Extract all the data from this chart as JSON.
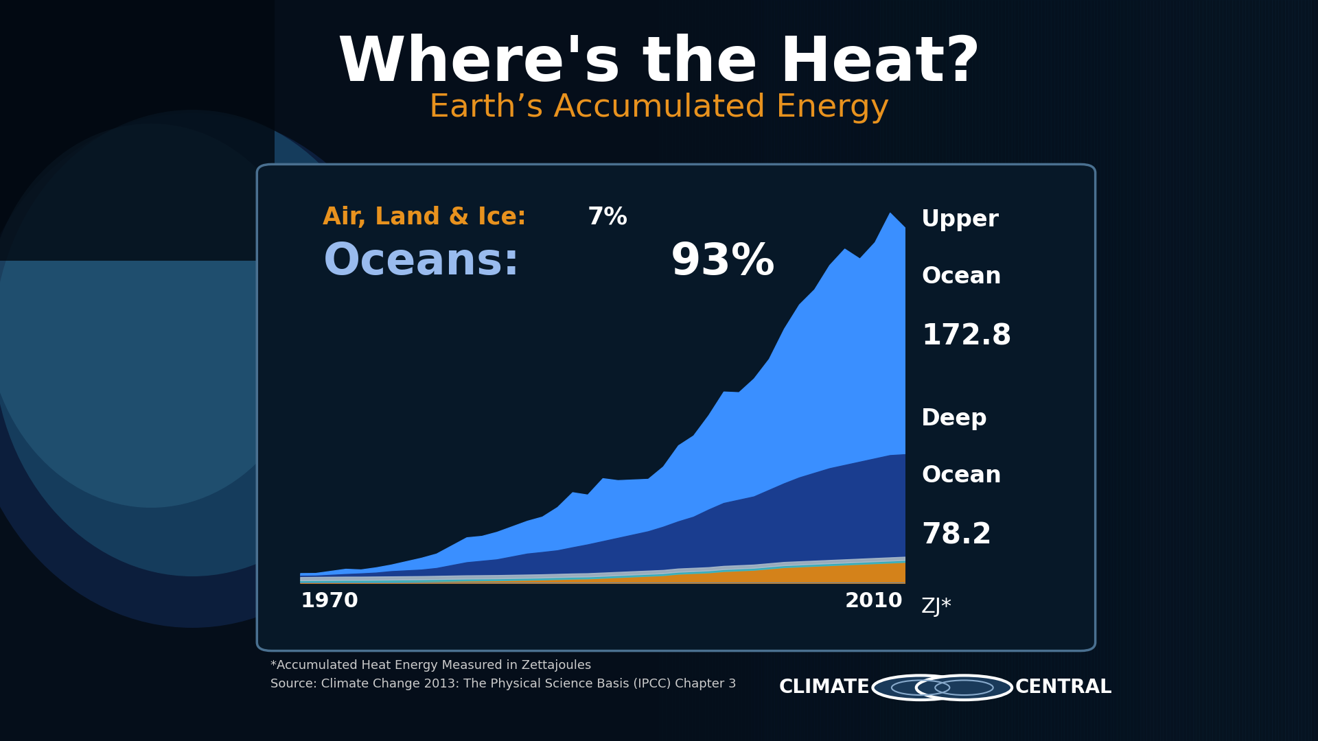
{
  "title": "Where's the Heat?",
  "subtitle": "Earth’s Accumulated Energy",
  "title_color": "#ffffff",
  "subtitle_color": "#e8921e",
  "bg_color": "#050e1a",
  "panel_bg": "#071828",
  "panel_bg_alpha": 0.82,
  "years": [
    1970,
    1971,
    1972,
    1973,
    1974,
    1975,
    1976,
    1977,
    1978,
    1979,
    1980,
    1981,
    1982,
    1983,
    1984,
    1985,
    1986,
    1987,
    1988,
    1989,
    1990,
    1991,
    1992,
    1993,
    1994,
    1995,
    1996,
    1997,
    1998,
    1999,
    2000,
    2001,
    2002,
    2003,
    2004,
    2005,
    2006,
    2007,
    2008,
    2009,
    2010
  ],
  "upper_ocean": [
    2,
    2,
    3,
    4,
    3,
    4,
    5,
    7,
    9,
    11,
    15,
    19,
    19,
    21,
    23,
    25,
    27,
    33,
    42,
    38,
    48,
    44,
    42,
    40,
    46,
    58,
    62,
    72,
    85,
    82,
    90,
    100,
    118,
    132,
    140,
    155,
    165,
    155,
    165,
    185,
    172.8
  ],
  "deep_ocean": [
    1,
    1,
    1.5,
    2,
    2.5,
    3,
    4,
    4.5,
    5,
    6,
    8,
    10,
    11,
    12,
    14,
    16,
    17,
    18,
    20,
    22,
    24,
    26,
    28,
    30,
    33,
    36,
    39,
    44,
    48,
    50,
    52,
    56,
    60,
    64,
    67,
    70,
    72,
    74,
    76,
    78,
    78.2
  ],
  "air_land_ice": [
    0.5,
    0.6,
    0.7,
    0.8,
    0.8,
    0.9,
    1.0,
    1.1,
    1.2,
    1.4,
    1.6,
    1.8,
    1.9,
    2.0,
    2.2,
    2.4,
    2.6,
    2.9,
    3.2,
    3.4,
    3.9,
    4.4,
    4.9,
    5.4,
    5.9,
    7.0,
    7.5,
    8.0,
    9.0,
    9.5,
    10.0,
    11.0,
    12.0,
    12.5,
    13.0,
    13.5,
    14.0,
    14.5,
    15.0,
    15.5,
    16.0
  ],
  "upper_ocean_color": "#3a8fff",
  "deep_ocean_color": "#1a3d8f",
  "air_land_ice_color": "#d4821a",
  "white_strip_color": "#aabccc",
  "cyan_strip_color": "#3ab8c8",
  "panel_border_color": "#4a7090",
  "text_label_air": "Air, Land & Ice:",
  "text_label_air_pct": "7%",
  "text_label_ocean": "Oceans:",
  "text_label_ocean_pct": "93%",
  "air_label_color": "#e8921e",
  "air_pct_color": "#ffffff",
  "ocean_label_color": "#99bbee",
  "ocean_pct_color": "#ffffff",
  "upper_ocean_label1": "Upper",
  "upper_ocean_label2": "Ocean",
  "upper_ocean_value": "172.8",
  "deep_ocean_label1": "Deep",
  "deep_ocean_label2": "Ocean",
  "deep_ocean_value": "78.2",
  "unit_label": "ZJ*",
  "x_start_label": "1970",
  "x_end_label": "2010",
  "source_line1": "*Accumulated Heat Energy Measured in Zettajoules",
  "source_line2": "Source: Climate Change 2013: The Physical Science Basis (IPCC) Chapter 3",
  "right_bg_color1": "#0a2540",
  "right_bg_color2": "#1a4a6a"
}
